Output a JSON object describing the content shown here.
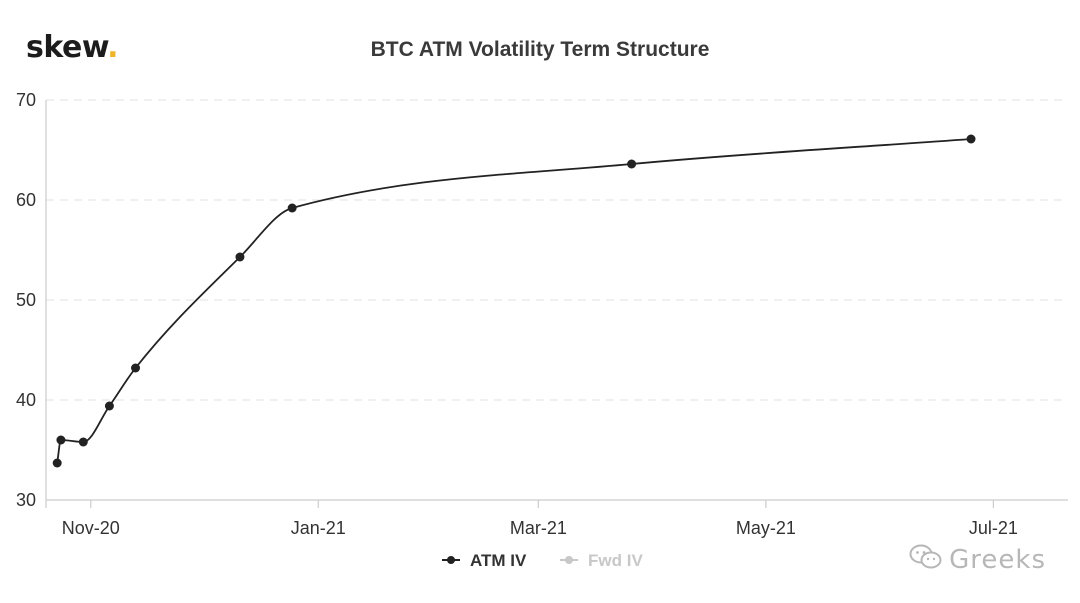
{
  "logo": {
    "text": "skew",
    "dot": "."
  },
  "watermark": {
    "text": "Greeks",
    "icon": "wechat-icon"
  },
  "colors": {
    "line": "#222222",
    "grid": "#e6e6e6",
    "axis": "#cccccc",
    "legend_inactive": "#c8c8c8",
    "logo_dot": "#f0b429"
  },
  "chart_data": {
    "type": "line",
    "title": "BTC ATM Volatility Term Structure",
    "xlabel": "",
    "ylabel": "",
    "ylim": [
      30,
      70
    ],
    "yticks": [
      30,
      40,
      50,
      60,
      70
    ],
    "xlim": [
      "2020-10-20",
      "2021-07-21"
    ],
    "xticks": [
      {
        "date": "2020-11-01",
        "label": "Nov-20"
      },
      {
        "date": "2021-01-01",
        "label": "Jan-21"
      },
      {
        "date": "2021-03-01",
        "label": "Mar-21"
      },
      {
        "date": "2021-05-01",
        "label": "May-21"
      },
      {
        "date": "2021-07-01",
        "label": "Jul-21"
      }
    ],
    "grid": {
      "horizontal": true,
      "dashed": true
    },
    "legend_position": "bottom-center",
    "series": [
      {
        "name": "ATM IV",
        "active": true,
        "points": [
          {
            "x": "2020-10-23",
            "y": 33.7
          },
          {
            "x": "2020-10-24",
            "y": 36.0
          },
          {
            "x": "2020-10-30",
            "y": 35.8
          },
          {
            "x": "2020-11-06",
            "y": 39.4
          },
          {
            "x": "2020-11-13",
            "y": 43.2
          },
          {
            "x": "2020-12-11",
            "y": 54.3
          },
          {
            "x": "2020-12-25",
            "y": 59.2
          },
          {
            "x": "2021-03-26",
            "y": 63.6
          },
          {
            "x": "2021-06-25",
            "y": 66.1
          }
        ]
      },
      {
        "name": "Fwd IV",
        "active": false,
        "points": []
      }
    ]
  }
}
